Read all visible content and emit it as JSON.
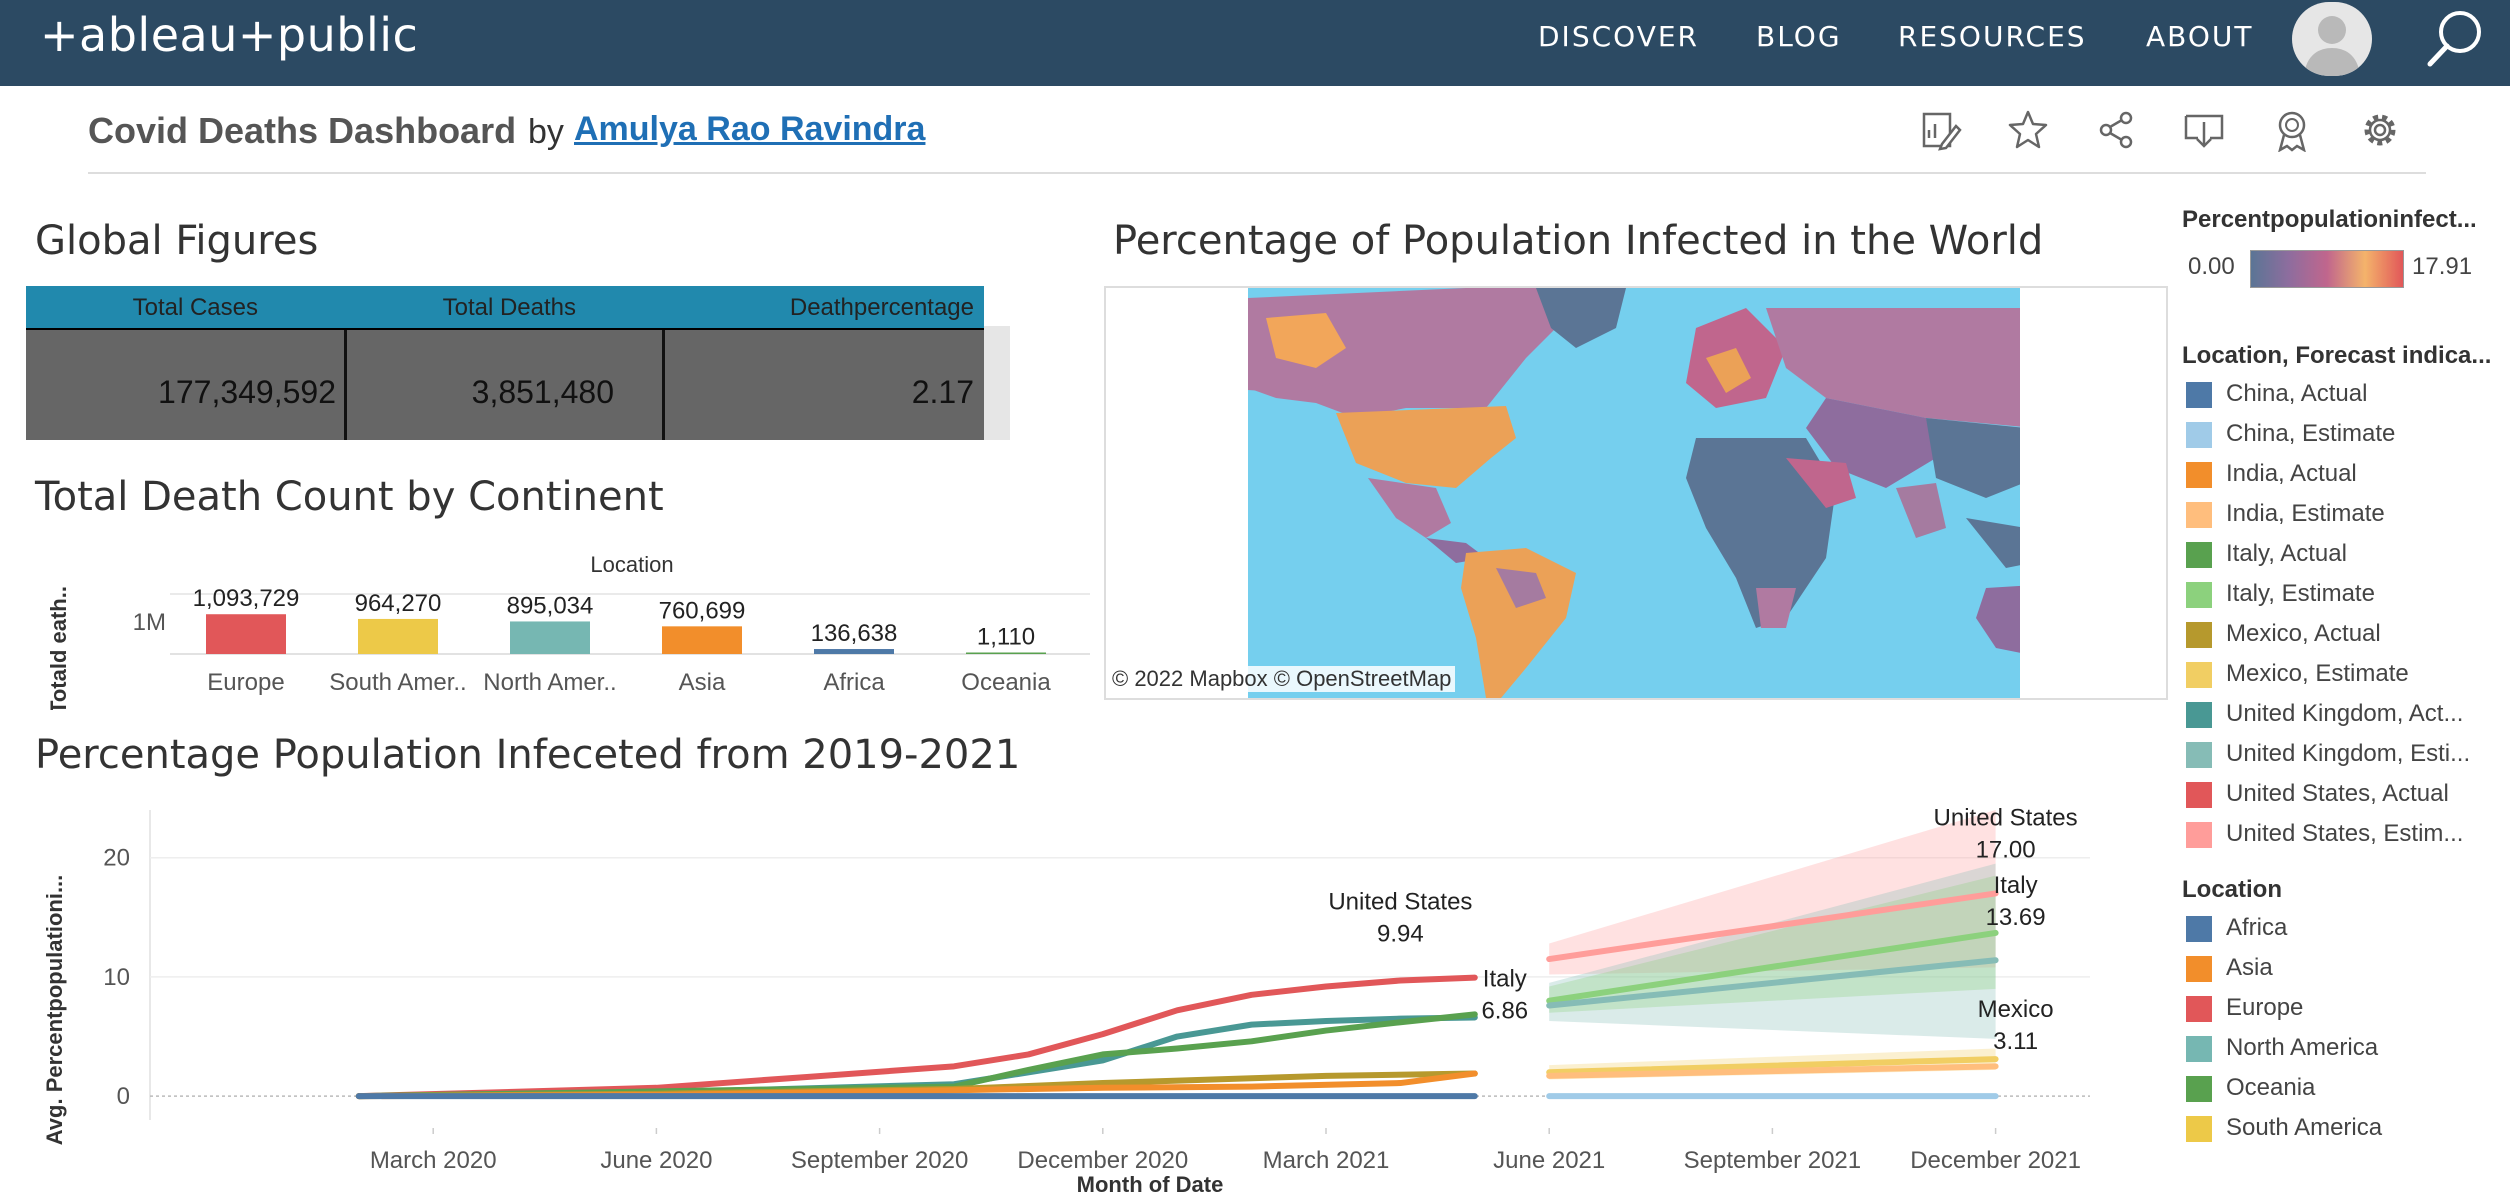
{
  "nav": {
    "logo": "+ableau+public",
    "links": [
      "DISCOVER",
      "BLOG",
      "RESOURCES",
      "ABOUT"
    ]
  },
  "header": {
    "title": "Covid Deaths Dashboard",
    "by": "by",
    "author": "Amulya Rao Ravindra",
    "tools": [
      "edit-icon",
      "star-icon",
      "share-icon",
      "download-icon",
      "badge-icon",
      "gear-icon"
    ]
  },
  "global_figures": {
    "title": "Global Figures",
    "columns": [
      "Total Cases",
      "Total Deaths",
      "Deathpercentage"
    ],
    "values": [
      "177,349,592",
      "3,851,480",
      "2.17"
    ],
    "header_color": "#2189ad",
    "cell_color": "#666666"
  },
  "map": {
    "title": "Percentage of Population Infected in the World",
    "credit": "© 2022 Mapbox  © OpenStreetMap",
    "ocean_color": "#75cfee"
  },
  "legend_color": {
    "title": "Percentpopulationinfect...",
    "min": "0.00",
    "max": "17.91"
  },
  "legend_forecast": {
    "title": "Location, Forecast indica...",
    "items": [
      {
        "label": "China, Actual",
        "color": "#4e79a7"
      },
      {
        "label": "China, Estimate",
        "color": "#a0cbe8"
      },
      {
        "label": "India, Actual",
        "color": "#f28e2b"
      },
      {
        "label": "India, Estimate",
        "color": "#ffbe7d"
      },
      {
        "label": "Italy, Actual",
        "color": "#59a14f"
      },
      {
        "label": "Italy, Estimate",
        "color": "#8cd17d"
      },
      {
        "label": "Mexico, Actual",
        "color": "#b6992d"
      },
      {
        "label": "Mexico, Estimate",
        "color": "#f1ce63"
      },
      {
        "label": "United Kingdom, Act...",
        "color": "#499894"
      },
      {
        "label": "United Kingdom, Esti...",
        "color": "#86bcb6"
      },
      {
        "label": "United States, Actual",
        "color": "#e15759"
      },
      {
        "label": "United States, Estim...",
        "color": "#ff9d9a"
      }
    ]
  },
  "legend_location": {
    "title": "Location",
    "items": [
      {
        "label": "Africa",
        "color": "#4e79a7"
      },
      {
        "label": "Asia",
        "color": "#f28e2b"
      },
      {
        "label": "Europe",
        "color": "#e15759"
      },
      {
        "label": "North America",
        "color": "#76b7b2"
      },
      {
        "label": "Oceania",
        "color": "#59a14f"
      },
      {
        "label": "South America",
        "color": "#edc948"
      }
    ]
  },
  "chart_data": [
    {
      "type": "bar",
      "title": "Total Death Count by Continent",
      "header": "Location",
      "ylabel": "Totald eath..",
      "yticks": [
        "1M"
      ],
      "ylim": [
        0,
        1100000
      ],
      "categories": [
        "Europe",
        "South Amer..",
        "North Amer..",
        "Asia",
        "Africa",
        "Oceania"
      ],
      "values": [
        1093729,
        964270,
        895034,
        760699,
        136638,
        1110
      ],
      "value_labels": [
        "1,093,729",
        "964,270",
        "895,034",
        "760,699",
        "136,638",
        "1,110"
      ],
      "colors": [
        "#e15759",
        "#edc948",
        "#76b7b2",
        "#f28e2b",
        "#4e79a7",
        "#59a14f"
      ]
    },
    {
      "type": "line",
      "title": "Percentage Population Infeceted from 2019-2021",
      "xlabel": "Month of Date",
      "ylabel": "Avg. Percentpopulationi...",
      "ylim": [
        -2,
        24
      ],
      "yticks": [
        0,
        10,
        20
      ],
      "xticks": [
        "March 2020",
        "June 2020",
        "September 2020",
        "December 2020",
        "March 2021",
        "June 2021",
        "September 2021",
        "December 2021"
      ],
      "series": [
        {
          "name": "United States, Actual",
          "color": "#e15759",
          "points": [
            [
              "2020-02",
              0
            ],
            [
              "2020-06",
              0.7
            ],
            [
              "2020-08",
              1.6
            ],
            [
              "2020-10",
              2.5
            ],
            [
              "2020-11",
              3.5
            ],
            [
              "2020-12",
              5.2
            ],
            [
              "2021-01",
              7.2
            ],
            [
              "2021-02",
              8.5
            ],
            [
              "2021-03",
              9.2
            ],
            [
              "2021-04",
              9.7
            ],
            [
              "2021-05",
              9.94
            ]
          ]
        },
        {
          "name": "United Kingdom, Actual",
          "color": "#499894",
          "points": [
            [
              "2020-02",
              0
            ],
            [
              "2020-06",
              0.3
            ],
            [
              "2020-10",
              1.0
            ],
            [
              "2020-12",
              3.0
            ],
            [
              "2021-01",
              5.0
            ],
            [
              "2021-02",
              6.0
            ],
            [
              "2021-03",
              6.3
            ],
            [
              "2021-04",
              6.5
            ],
            [
              "2021-05",
              6.6
            ]
          ]
        },
        {
          "name": "Italy, Actual",
          "color": "#59a14f",
          "points": [
            [
              "2020-02",
              0
            ],
            [
              "2020-06",
              0.4
            ],
            [
              "2020-10",
              0.8
            ],
            [
              "2020-11",
              2.2
            ],
            [
              "2020-12",
              3.5
            ],
            [
              "2021-01",
              4.0
            ],
            [
              "2021-02",
              4.6
            ],
            [
              "2021-03",
              5.5
            ],
            [
              "2021-04",
              6.2
            ],
            [
              "2021-05",
              6.86
            ]
          ]
        },
        {
          "name": "Mexico, Actual",
          "color": "#b6992d",
          "points": [
            [
              "2020-02",
              0
            ],
            [
              "2020-06",
              0.2
            ],
            [
              "2020-10",
              0.6
            ],
            [
              "2020-12",
              1.1
            ],
            [
              "2021-02",
              1.5
            ],
            [
              "2021-03",
              1.7
            ],
            [
              "2021-05",
              1.9
            ]
          ]
        },
        {
          "name": "India, Actual",
          "color": "#f28e2b",
          "points": [
            [
              "2020-02",
              0
            ],
            [
              "2020-06",
              0.1
            ],
            [
              "2020-10",
              0.5
            ],
            [
              "2020-12",
              0.7
            ],
            [
              "2021-02",
              0.8
            ],
            [
              "2021-04",
              1.1
            ],
            [
              "2021-05",
              1.9
            ]
          ]
        },
        {
          "name": "China, Actual",
          "color": "#4e79a7",
          "points": [
            [
              "2020-02",
              0
            ],
            [
              "2021-05",
              0
            ]
          ]
        },
        {
          "name": "United States, Estimate",
          "color": "#ff9d9a",
          "points": [
            [
              "2021-06",
              11.5
            ],
            [
              "2021-12",
              17.0
            ]
          ]
        },
        {
          "name": "Italy, Estimate",
          "color": "#8cd17d",
          "points": [
            [
              "2021-06",
              8.0
            ],
            [
              "2021-12",
              13.69
            ]
          ]
        },
        {
          "name": "United Kingdom, Estimate",
          "color": "#86bcb6",
          "points": [
            [
              "2021-06",
              7.6
            ],
            [
              "2021-12",
              11.4
            ]
          ]
        },
        {
          "name": "Mexico, Estimate",
          "color": "#f1ce63",
          "points": [
            [
              "2021-06",
              2.0
            ],
            [
              "2021-12",
              3.11
            ]
          ]
        },
        {
          "name": "India, Estimate",
          "color": "#ffbe7d",
          "points": [
            [
              "2021-06",
              1.7
            ],
            [
              "2021-12",
              2.5
            ]
          ]
        },
        {
          "name": "China, Estimate",
          "color": "#a0cbe8",
          "points": [
            [
              "2021-06",
              0
            ],
            [
              "2021-12",
              0
            ]
          ]
        }
      ],
      "bands": [
        {
          "color": "#ff9d9a",
          "upper": [
            [
              "2021-06",
              12.8
            ],
            [
              "2021-12",
              24.0
            ]
          ],
          "lower": [
            [
              "2021-06",
              10.2
            ],
            [
              "2021-12",
              10.8
            ]
          ]
        },
        {
          "color": "#86bcb6",
          "upper": [
            [
              "2021-06",
              9.5
            ],
            [
              "2021-12",
              19.5
            ]
          ],
          "lower": [
            [
              "2021-06",
              6.3
            ],
            [
              "2021-12",
              4.8
            ]
          ]
        },
        {
          "color": "#8cd17d",
          "upper": [
            [
              "2021-06",
              9.2
            ],
            [
              "2021-12",
              18.5
            ]
          ],
          "lower": [
            [
              "2021-06",
              7.0
            ],
            [
              "2021-12",
              9.0
            ]
          ]
        },
        {
          "color": "#f1ce63",
          "upper": [
            [
              "2021-06",
              2.6
            ],
            [
              "2021-12",
              4.0
            ]
          ],
          "lower": [
            [
              "2021-06",
              1.4
            ],
            [
              "2021-12",
              2.2
            ]
          ]
        }
      ],
      "annotations": [
        {
          "label": "United States",
          "value": "9.94",
          "at": [
            "2021-04",
            9.94
          ]
        },
        {
          "label": "Italy",
          "value": "6.86",
          "at": [
            "2021-05",
            6.86
          ]
        },
        {
          "label": "United States",
          "value": "17.00",
          "at": [
            "2021-12",
            17.0
          ]
        },
        {
          "label": "Italy",
          "value": "13.69",
          "at": [
            "2021-12",
            13.69
          ]
        },
        {
          "label": "Mexico",
          "value": "3.11",
          "at": [
            "2021-12",
            3.11
          ]
        }
      ]
    }
  ]
}
